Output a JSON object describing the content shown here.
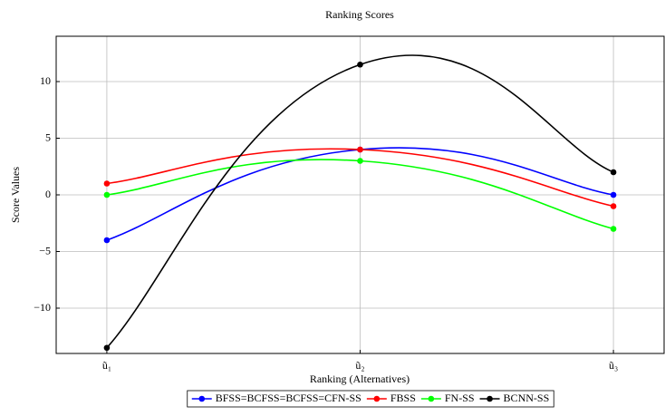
{
  "chart_data": {
    "type": "line",
    "title": "Ranking Scores",
    "x_label": "Ranking (Alternatives)",
    "y_label": "Score Values",
    "categories": [
      "ũ₁",
      "ũ₂",
      "ũ₃"
    ],
    "series": [
      {
        "name": "BFSS=BCFSS=BCFSS=CFN-SS",
        "color": "#0000ff",
        "values": [
          -4,
          4,
          0
        ]
      },
      {
        "name": "FBSS",
        "color": "#ff0000",
        "values": [
          1,
          4,
          -1
        ]
      },
      {
        "name": "FN-SS",
        "color": "#00ff00",
        "values": [
          0,
          3,
          -3
        ]
      },
      {
        "name": "BCNN-SS",
        "color": "#000000",
        "values": [
          -13.5,
          11.5,
          2
        ]
      }
    ],
    "ylim": [
      -14,
      14
    ],
    "yticks": [
      {
        "value": -10,
        "label": "−10"
      },
      {
        "value": -5,
        "label": "−5"
      },
      0,
      5,
      10
    ],
    "grid": true,
    "smooth": true,
    "legend": "bottom"
  }
}
